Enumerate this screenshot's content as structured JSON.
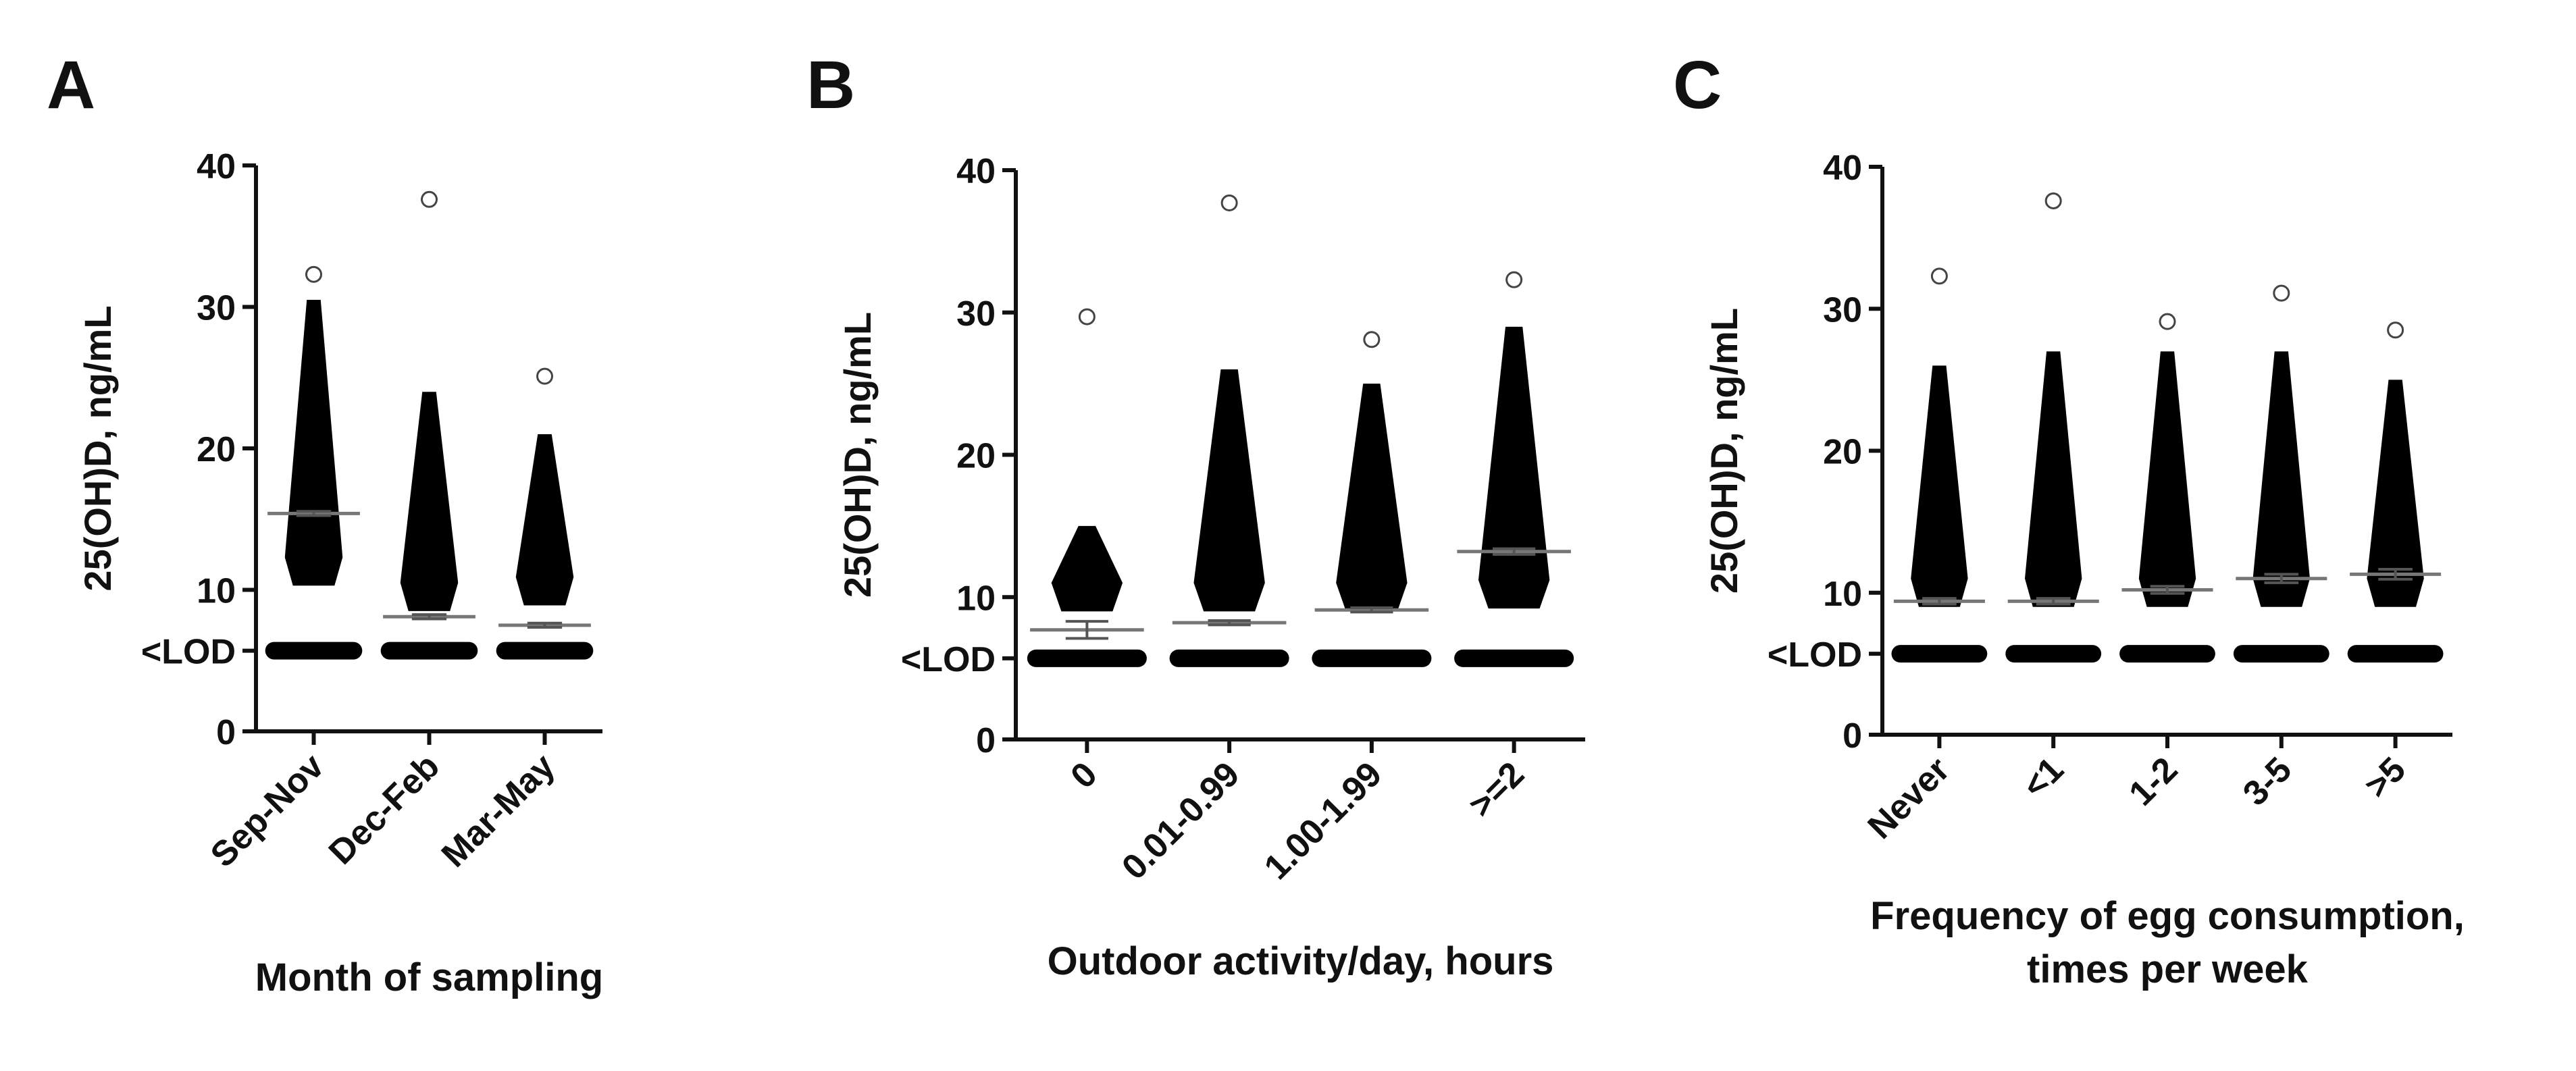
{
  "chart_data": [
    {
      "type": "dot",
      "panel": "A",
      "ylabel": "25(OH)D, ng/mL",
      "xlabel": [
        "Month of sampling"
      ],
      "categories": [
        "Sep-Nov",
        "Dec-Feb",
        "Mar-May"
      ],
      "values": [
        15.4,
        8.1,
        7.5
      ],
      "errors": [
        0.15,
        0.15,
        0.15
      ],
      "ranges": [
        [
          10.3,
          30.5
        ],
        [
          8.5,
          24
        ],
        [
          8.9,
          21
        ]
      ],
      "max": [
        32.3,
        37.6,
        25.1
      ],
      "ylim": [
        0,
        40
      ],
      "yticks": [
        0,
        {
          "value": 5.7,
          "label": "<LOD"
        },
        10,
        20,
        30,
        40
      ]
    },
    {
      "type": "dot",
      "panel": "B",
      "ylabel": "25(OH)D, ng/mL",
      "xlabel": [
        "Outdoor activity/day, hours"
      ],
      "categories": [
        "0",
        "0.01-0.99",
        "1.00-1.99",
        ">=2"
      ],
      "values": [
        7.7,
        8.2,
        9.1,
        13.2
      ],
      "errors": [
        0.6,
        0.15,
        0.15,
        0.2
      ],
      "ranges": [
        [
          9,
          15
        ],
        [
          9,
          26
        ],
        [
          9,
          25
        ],
        [
          9.2,
          29
        ]
      ],
      "max": [
        29.7,
        37.7,
        28.1,
        32.3
      ],
      "ylim": [
        0,
        40
      ],
      "yticks": [
        0,
        {
          "value": 5.7,
          "label": "<LOD"
        },
        10,
        20,
        30,
        40
      ]
    },
    {
      "type": "dot",
      "panel": "C",
      "ylabel": "25(OH)D, ng/mL",
      "xlabel": [
        "Frequency of egg consumption,",
        "times per week"
      ],
      "categories": [
        "Never",
        "<1",
        "1-2",
        "3-5",
        ">5"
      ],
      "values": [
        9.4,
        9.4,
        10.2,
        11.0,
        11.3
      ],
      "errors": [
        0.2,
        0.2,
        0.25,
        0.3,
        0.35
      ],
      "ranges": [
        [
          9,
          26
        ],
        [
          9,
          27
        ],
        [
          9,
          27
        ],
        [
          9,
          27
        ],
        [
          9,
          25
        ]
      ],
      "max": [
        32.3,
        37.6,
        29.1,
        31.1,
        28.5
      ],
      "ylim": [
        0,
        40
      ],
      "yticks": [
        0,
        {
          "value": 5.7,
          "label": "<LOD"
        },
        10,
        20,
        30,
        40
      ]
    }
  ]
}
